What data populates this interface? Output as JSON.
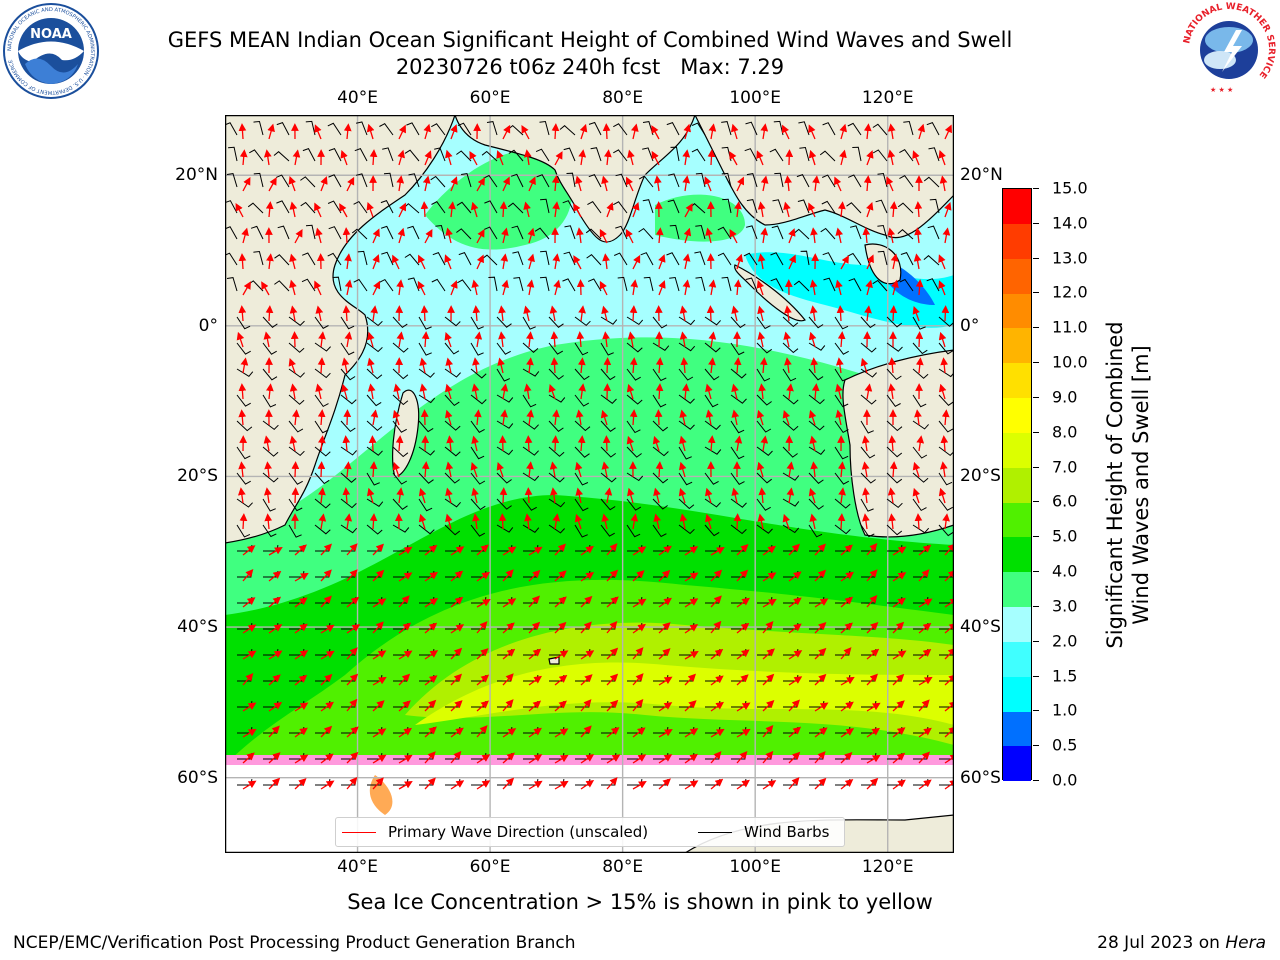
{
  "header": {
    "title_line1": "GEFS MEAN Indian Ocean Significant Height of Combined Wind Waves and Swell",
    "title_line2": "20230726 t06z 240h fcst   Max: 7.29"
  },
  "logos": {
    "noaa_text": "NOAA",
    "noaa_ring_text": "NATIONAL OCEANIC AND ATMOSPHERIC ADMINISTRATION · U.S. DEPARTMENT OF COMMERCE",
    "nws_ring_text": "NATIONAL WEATHER SERVICE"
  },
  "map": {
    "lon_range": [
      20,
      130
    ],
    "lat_range": [
      -70,
      28
    ],
    "lon_ticks": [
      {
        "v": 40,
        "label": "40°E"
      },
      {
        "v": 60,
        "label": "60°E"
      },
      {
        "v": 80,
        "label": "80°E"
      },
      {
        "v": 100,
        "label": "100°E"
      },
      {
        "v": 120,
        "label": "120°E"
      }
    ],
    "lat_ticks": [
      {
        "v": 20,
        "label": "20°N"
      },
      {
        "v": 0,
        "label": "0°"
      },
      {
        "v": -20,
        "label": "20°S"
      },
      {
        "v": -40,
        "label": "40°S"
      },
      {
        "v": -60,
        "label": "60°S"
      }
    ],
    "grid": true,
    "land_color": "#eeecda",
    "grid_color": "#b4b4b4"
  },
  "colorbar": {
    "label_line1": "Significant Height of Combined",
    "label_line2": "Wind Waves and Swell [m]",
    "ticks": [
      "0.0",
      "0.5",
      "1.0",
      "1.5",
      "2.0",
      "3.0",
      "4.0",
      "5.0",
      "6.0",
      "7.0",
      "8.0",
      "9.0",
      "10.0",
      "11.0",
      "12.0",
      "13.0",
      "14.0",
      "15.0"
    ],
    "colors": [
      "#0000ff",
      "#0070ff",
      "#00ffff",
      "#40ffff",
      "#a6ffff",
      "#40ff80",
      "#00e000",
      "#50f000",
      "#b0f000",
      "#dcff00",
      "#ffff00",
      "#ffe000",
      "#ffb400",
      "#ff8c00",
      "#ff6400",
      "#ff3c00",
      "#ff0000"
    ]
  },
  "legend": {
    "wave_direction": "Primary Wave Direction (unscaled)",
    "wind_barbs": "Wind Barbs",
    "wave_color": "#ff0000",
    "barb_color": "#000000"
  },
  "footer": {
    "sea_ice_note": "Sea Ice Concentration > 15% is shown in pink to yellow",
    "credit": "NCEP/EMC/Verification Post Processing Product Generation Branch",
    "date_prefix": "28 Jul 2023 on ",
    "machine": "Hera"
  }
}
